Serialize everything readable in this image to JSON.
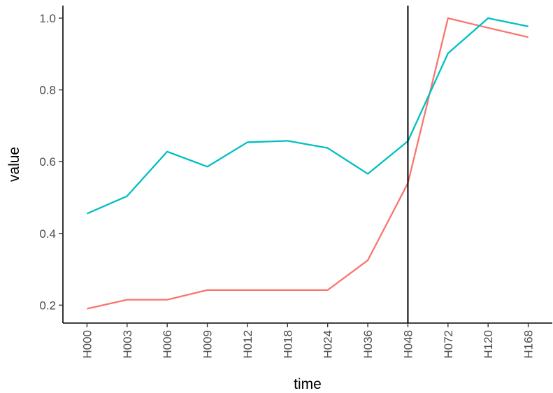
{
  "chart_data": {
    "type": "line",
    "xlabel": "time",
    "ylabel": "value",
    "categories": [
      "H000",
      "H003",
      "H006",
      "H009",
      "H012",
      "H018",
      "H024",
      "H036",
      "H048",
      "H072",
      "H120",
      "H168"
    ],
    "ylim": [
      0.15,
      1.035
    ],
    "yticks": [
      0.2,
      0.4,
      0.6,
      0.8,
      1.0
    ],
    "ytick_labels": [
      "0.2",
      "0.4",
      "0.6",
      "0.8",
      "1.0"
    ],
    "series": [
      {
        "color": "#F8766D",
        "values": [
          0.19,
          0.215,
          0.215,
          0.242,
          0.242,
          0.242,
          0.242,
          0.325,
          0.54,
          1.0,
          0.973,
          0.947
        ]
      },
      {
        "color": "#00BFC4",
        "values": [
          0.455,
          0.504,
          0.628,
          0.586,
          0.654,
          0.658,
          0.638,
          0.566,
          0.657,
          0.902,
          1.0,
          0.977
        ]
      }
    ],
    "vline_at": "H048",
    "grid": false,
    "legend": "none"
  }
}
